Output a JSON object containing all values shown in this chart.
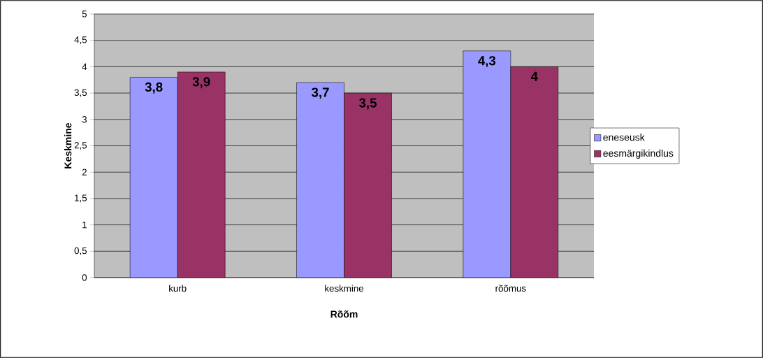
{
  "chart_data": {
    "type": "bar",
    "xlabel": "Rõõm",
    "ylabel": "Keskmine",
    "categories": [
      "kurb",
      "keskmine",
      "rõõmus"
    ],
    "series": [
      {
        "name": "eneseusk",
        "color": "#9999ff",
        "values": [
          3.8,
          3.7,
          4.3
        ],
        "value_labels": [
          "3,8",
          "3,7",
          "4,3"
        ]
      },
      {
        "name": "eesmärgikindlus",
        "color": "#993366",
        "values": [
          3.9,
          3.5,
          4.0
        ],
        "value_labels": [
          "3,9",
          "3,5",
          "4"
        ]
      }
    ],
    "ylim": [
      0,
      5
    ],
    "yticks": [
      0,
      {
        "value": 0.5,
        "label": "0,5"
      },
      1,
      {
        "value": 1.5,
        "label": "1,5"
      },
      2,
      {
        "value": 2.5,
        "label": "2,5"
      },
      3,
      {
        "value": 3.5,
        "label": "3,5"
      },
      4,
      {
        "value": 4.5,
        "label": "4,5"
      },
      5
    ],
    "grid": "y",
    "legend": "right"
  }
}
